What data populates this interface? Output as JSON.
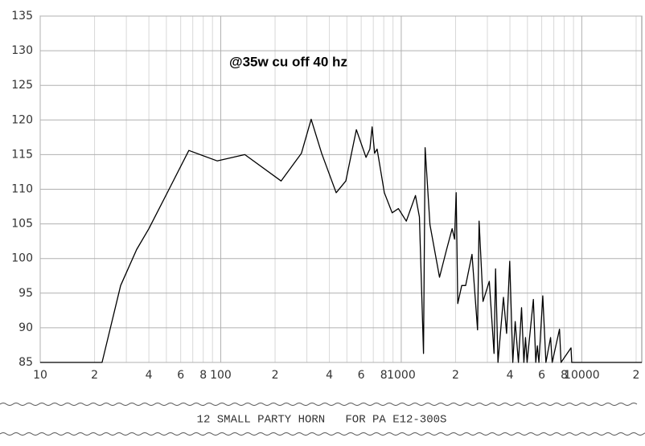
{
  "chart_data": {
    "type": "line",
    "annotation": "@35w cu off 40 hz",
    "footer": "12 SMALL PARTY HORN   FOR PA E12-300S",
    "log_x": true,
    "grid": true,
    "xlim": [
      10,
      21500
    ],
    "ylim": [
      85,
      135
    ],
    "yticks": [
      85,
      90,
      95,
      100,
      105,
      110,
      115,
      120,
      125,
      130,
      135
    ],
    "xticks": [
      10,
      {
        "value": 20,
        "label": "2"
      },
      {
        "value": 40,
        "label": "4"
      },
      {
        "value": 60,
        "label": "6"
      },
      {
        "value": 80,
        "label": "8"
      },
      100,
      {
        "value": 200,
        "label": "2"
      },
      {
        "value": 400,
        "label": "4"
      },
      {
        "value": 600,
        "label": "6"
      },
      {
        "value": 800,
        "label": "8"
      },
      1000,
      {
        "value": 2000,
        "label": "2"
      },
      {
        "value": 4000,
        "label": "4"
      },
      {
        "value": 6000,
        "label": "6"
      },
      {
        "value": 8000,
        "label": "8"
      },
      10000,
      {
        "value": 20000,
        "label": "2"
      }
    ],
    "xminor": [
      30,
      50,
      70,
      90,
      300,
      500,
      700,
      900,
      3000,
      5000,
      7000,
      9000
    ],
    "series": [
      {
        "color": "#000000",
        "x": [
          10,
          22,
          27.9,
          34.2,
          40,
          51.7,
          66.6,
          95.5,
          136,
          216,
          280,
          317,
          362,
          436,
          493,
          564,
          638,
          670,
          690,
          712,
          735,
          806,
          890,
          965,
          1067,
          1199,
          1261,
          1328,
          1356,
          1442,
          1630,
          1783,
          1914,
          1974,
          2015,
          2057,
          2163,
          2275,
          2466,
          2646,
          2700,
          2839,
          3075,
          3265,
          3332,
          3434,
          3682,
          3833,
          3988,
          4150,
          4279,
          4455,
          4637,
          4780,
          4880,
          4980,
          5392,
          5560,
          5670,
          5790,
          6080,
          6330,
          6720,
          6860,
          7530,
          7680,
          8720,
          8800,
          21500
        ],
        "values": [
          85,
          85,
          96.1,
          101.3,
          104.3,
          110,
          115.6,
          114.1,
          115,
          111.2,
          115.2,
          120.1,
          115.2,
          109.5,
          111.2,
          118.6,
          114.6,
          115.8,
          119,
          115.2,
          115.8,
          109.5,
          106.6,
          107.2,
          105.4,
          109.1,
          106,
          86.3,
          116,
          104.9,
          97.3,
          101.3,
          104.3,
          102.8,
          109.5,
          93.5,
          96.1,
          96.1,
          100.6,
          89.7,
          105.4,
          93.8,
          96.7,
          86.3,
          98.5,
          85,
          94.4,
          89.2,
          99.6,
          85,
          90.9,
          85,
          92.9,
          85,
          88.6,
          85,
          94.1,
          85,
          87.4,
          85,
          94.6,
          85,
          88.6,
          85,
          89.8,
          85,
          87.1,
          85,
          85
        ]
      }
    ]
  }
}
